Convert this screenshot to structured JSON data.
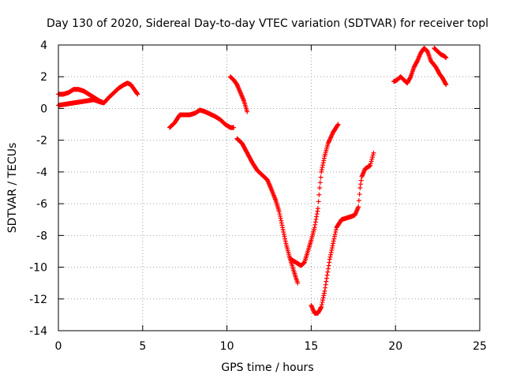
{
  "chart_data": {
    "type": "scatter",
    "title": "Day 130 of 2020, Sidereal Day-to-day VTEC variation (SDTVAR) for receiver topl",
    "xlabel": "GPS time / hours",
    "ylabel": "SDTVAR / TECUs",
    "xlim": [
      0,
      25
    ],
    "ylim": [
      -14,
      4
    ],
    "xticks": [
      0,
      5,
      10,
      15,
      20,
      25
    ],
    "yticks": [
      -14,
      -12,
      -10,
      -8,
      -6,
      -4,
      -2,
      0,
      2,
      4
    ],
    "x_tick_labels": [
      "0",
      "5",
      "10",
      "15",
      "20",
      "25"
    ],
    "y_tick_labels": [
      "-14",
      "-12",
      "-10",
      "-8",
      "-6",
      "-4",
      "-2",
      "0",
      "2",
      "4"
    ],
    "grid": true,
    "marker": "+",
    "color": "#ff0000",
    "series": [
      {
        "points": [
          [
            0.0,
            0.9
          ],
          [
            0.3,
            0.9
          ],
          [
            0.6,
            1.0
          ],
          [
            0.9,
            1.2
          ],
          [
            1.2,
            1.2
          ],
          [
            1.5,
            1.1
          ],
          [
            1.8,
            0.9
          ],
          [
            2.1,
            0.7
          ],
          [
            2.4,
            0.5
          ],
          [
            2.6,
            0.4
          ]
        ]
      },
      {
        "points": [
          [
            0.0,
            0.2
          ],
          [
            0.3,
            0.25
          ],
          [
            0.6,
            0.3
          ],
          [
            0.9,
            0.35
          ],
          [
            1.2,
            0.4
          ],
          [
            1.5,
            0.45
          ],
          [
            1.8,
            0.5
          ],
          [
            2.1,
            0.55
          ],
          [
            2.5,
            0.4
          ],
          [
            2.7,
            0.35
          ],
          [
            3.0,
            0.7
          ],
          [
            3.3,
            1.0
          ],
          [
            3.6,
            1.3
          ],
          [
            3.9,
            1.5
          ],
          [
            4.1,
            1.6
          ],
          [
            4.3,
            1.5
          ],
          [
            4.5,
            1.2
          ],
          [
            4.7,
            0.9
          ]
        ]
      },
      {
        "points": [
          [
            6.6,
            -1.2
          ],
          [
            6.9,
            -0.9
          ],
          [
            7.2,
            -0.4
          ],
          [
            7.5,
            -0.4
          ],
          [
            7.8,
            -0.4
          ],
          [
            8.1,
            -0.3
          ],
          [
            8.4,
            -0.1
          ],
          [
            8.7,
            -0.2
          ],
          [
            9.0,
            -0.35
          ],
          [
            9.3,
            -0.5
          ],
          [
            9.6,
            -0.7
          ],
          [
            9.9,
            -1.0
          ],
          [
            10.2,
            -1.2
          ],
          [
            10.4,
            -1.2
          ]
        ]
      },
      {
        "points": [
          [
            10.2,
            2.0
          ],
          [
            10.4,
            1.8
          ],
          [
            10.6,
            1.5
          ],
          [
            10.8,
            1.0
          ],
          [
            11.0,
            0.5
          ],
          [
            11.2,
            -0.2
          ]
        ]
      },
      {
        "points": [
          [
            10.6,
            -1.9
          ],
          [
            10.9,
            -2.2
          ],
          [
            11.2,
            -2.8
          ],
          [
            11.5,
            -3.4
          ],
          [
            11.8,
            -3.9
          ],
          [
            12.1,
            -4.2
          ],
          [
            12.4,
            -4.5
          ],
          [
            12.6,
            -5.0
          ],
          [
            12.9,
            -5.8
          ],
          [
            13.1,
            -6.5
          ],
          [
            13.3,
            -7.5
          ],
          [
            13.5,
            -8.5
          ],
          [
            13.7,
            -9.3
          ],
          [
            13.9,
            -10.0
          ],
          [
            14.1,
            -10.7
          ],
          [
            14.2,
            -11.0
          ]
        ]
      },
      {
        "points": [
          [
            13.8,
            -9.5
          ],
          [
            14.1,
            -9.7
          ],
          [
            14.4,
            -9.9
          ],
          [
            14.6,
            -9.7
          ],
          [
            14.8,
            -9.0
          ],
          [
            15.0,
            -8.3
          ],
          [
            15.2,
            -7.5
          ],
          [
            15.4,
            -6.3
          ],
          [
            15.5,
            -5.0
          ],
          [
            15.6,
            -4.0
          ],
          [
            15.8,
            -3.0
          ],
          [
            16.0,
            -2.2
          ],
          [
            16.3,
            -1.5
          ],
          [
            16.6,
            -1.0
          ]
        ]
      },
      {
        "points": [
          [
            15.0,
            -12.4
          ],
          [
            15.2,
            -12.9
          ],
          [
            15.4,
            -12.9
          ],
          [
            15.6,
            -12.5
          ],
          [
            15.8,
            -11.5
          ],
          [
            15.95,
            -10.5
          ],
          [
            16.1,
            -9.5
          ],
          [
            16.3,
            -8.5
          ],
          [
            16.5,
            -7.5
          ],
          [
            16.8,
            -7.0
          ],
          [
            17.1,
            -6.9
          ],
          [
            17.4,
            -6.8
          ],
          [
            17.6,
            -6.7
          ],
          [
            17.8,
            -6.2
          ],
          [
            17.9,
            -5.0
          ],
          [
            18.0,
            -4.3
          ],
          [
            18.2,
            -3.8
          ],
          [
            18.5,
            -3.6
          ],
          [
            18.6,
            -3.2
          ],
          [
            18.7,
            -2.8
          ]
        ]
      },
      {
        "points": [
          [
            19.9,
            1.7
          ],
          [
            20.1,
            1.8
          ],
          [
            20.3,
            2.0
          ],
          [
            20.5,
            1.8
          ],
          [
            20.7,
            1.6
          ],
          [
            20.9,
            2.0
          ],
          [
            21.1,
            2.6
          ],
          [
            21.3,
            3.0
          ],
          [
            21.5,
            3.5
          ],
          [
            21.7,
            3.8
          ],
          [
            21.9,
            3.6
          ],
          [
            22.1,
            3.0
          ],
          [
            22.4,
            2.6
          ],
          [
            22.6,
            2.2
          ],
          [
            22.8,
            1.9
          ],
          [
            23.0,
            1.5
          ]
        ]
      },
      {
        "points": [
          [
            22.3,
            3.8
          ],
          [
            22.5,
            3.6
          ],
          [
            22.7,
            3.4
          ],
          [
            22.9,
            3.3
          ],
          [
            23.0,
            3.2
          ]
        ]
      }
    ]
  }
}
